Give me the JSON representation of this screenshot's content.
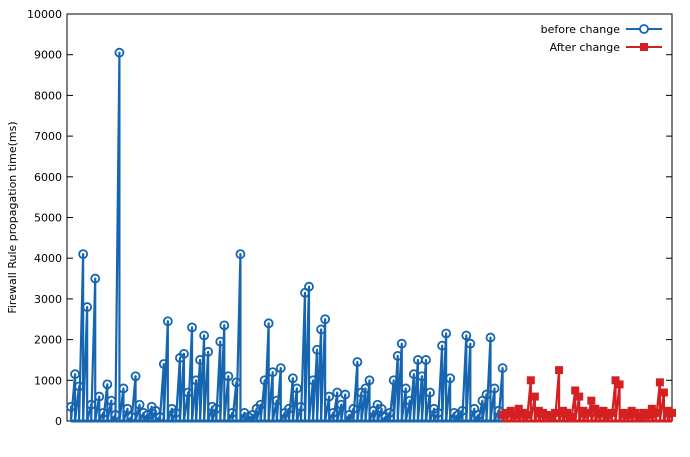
{
  "chart_data": {
    "type": "line",
    "title": "",
    "xlabel": "",
    "ylabel": "Firewall Rule propagation time(ms)",
    "ylim": [
      0,
      10000
    ],
    "yticks": [
      0,
      1000,
      2000,
      3000,
      4000,
      5000,
      6000,
      7000,
      8000,
      9000,
      10000
    ],
    "xlim": [
      0,
      150
    ],
    "grid": false,
    "legend_position": "top-right",
    "series": [
      {
        "name": "before change",
        "color": "#1565b0",
        "marker": "circle",
        "x": [
          1,
          2,
          3,
          4,
          5,
          6,
          7,
          8,
          9,
          10,
          11,
          12,
          13,
          14,
          15,
          16,
          17,
          18,
          19,
          20,
          21,
          22,
          23,
          24,
          25,
          26,
          27,
          28,
          29,
          30,
          31,
          32,
          33,
          34,
          35,
          36,
          37,
          38,
          39,
          40,
          41,
          42,
          43,
          44,
          45,
          46,
          47,
          48,
          49,
          50,
          51,
          52,
          53,
          54,
          55,
          56,
          57,
          58,
          59,
          60,
          61,
          62,
          63,
          64,
          65,
          66,
          67,
          68,
          69,
          70,
          71,
          72,
          73,
          74,
          75,
          76,
          77,
          78,
          79,
          80,
          81,
          82,
          83,
          84,
          85,
          86,
          87,
          88,
          89,
          90,
          91,
          92,
          93,
          94,
          95,
          96,
          97,
          98,
          99,
          100,
          101,
          102,
          103,
          104,
          105,
          106,
          107,
          108
        ],
        "values": [
          350,
          1150,
          850,
          4100,
          2800,
          400,
          3500,
          600,
          200,
          900,
          500,
          150,
          9050,
          800,
          300,
          100,
          1100,
          400,
          200,
          150,
          350,
          250,
          100,
          1400,
          2450,
          300,
          200,
          1550,
          1650,
          700,
          2300,
          1000,
          1500,
          2100,
          1700,
          350,
          300,
          1950,
          2350,
          1100,
          200,
          950,
          4100,
          200,
          100,
          150,
          300,
          400,
          1000,
          2400,
          1200,
          500,
          1300,
          200,
          300,
          1050,
          800,
          350,
          3150,
          3300,
          1000,
          1750,
          2250,
          2500,
          600,
          200,
          700,
          400,
          650,
          150,
          300,
          1450,
          700,
          800,
          1000,
          250,
          400,
          300,
          100,
          200,
          1000,
          1600,
          1900,
          800,
          500,
          1150,
          1500,
          1100,
          1500,
          700,
          300,
          200,
          1850,
          2150,
          1050,
          200,
          150,
          250,
          2100,
          1900,
          300,
          150,
          500,
          650,
          2050,
          800,
          250,
          1300
        ]
      },
      {
        "name": "After change",
        "color": "#d42020",
        "marker": "square",
        "x": [
          108,
          109,
          110,
          111,
          112,
          113,
          114,
          115,
          116,
          117,
          118,
          119,
          120,
          121,
          122,
          123,
          124,
          125,
          126,
          127,
          128,
          129,
          130,
          131,
          132,
          133,
          134,
          135,
          136,
          137,
          138,
          139,
          140,
          141,
          142,
          143,
          144,
          145,
          146,
          147,
          148,
          149,
          150
        ],
        "values": [
          150,
          200,
          250,
          150,
          300,
          200,
          150,
          1000,
          600,
          250,
          200,
          150,
          100,
          200,
          1250,
          250,
          200,
          100,
          750,
          600,
          250,
          200,
          500,
          300,
          200,
          250,
          150,
          200,
          1000,
          900,
          200,
          150,
          250,
          200,
          100,
          200,
          150,
          300,
          200,
          950,
          700,
          250,
          200
        ]
      }
    ]
  }
}
